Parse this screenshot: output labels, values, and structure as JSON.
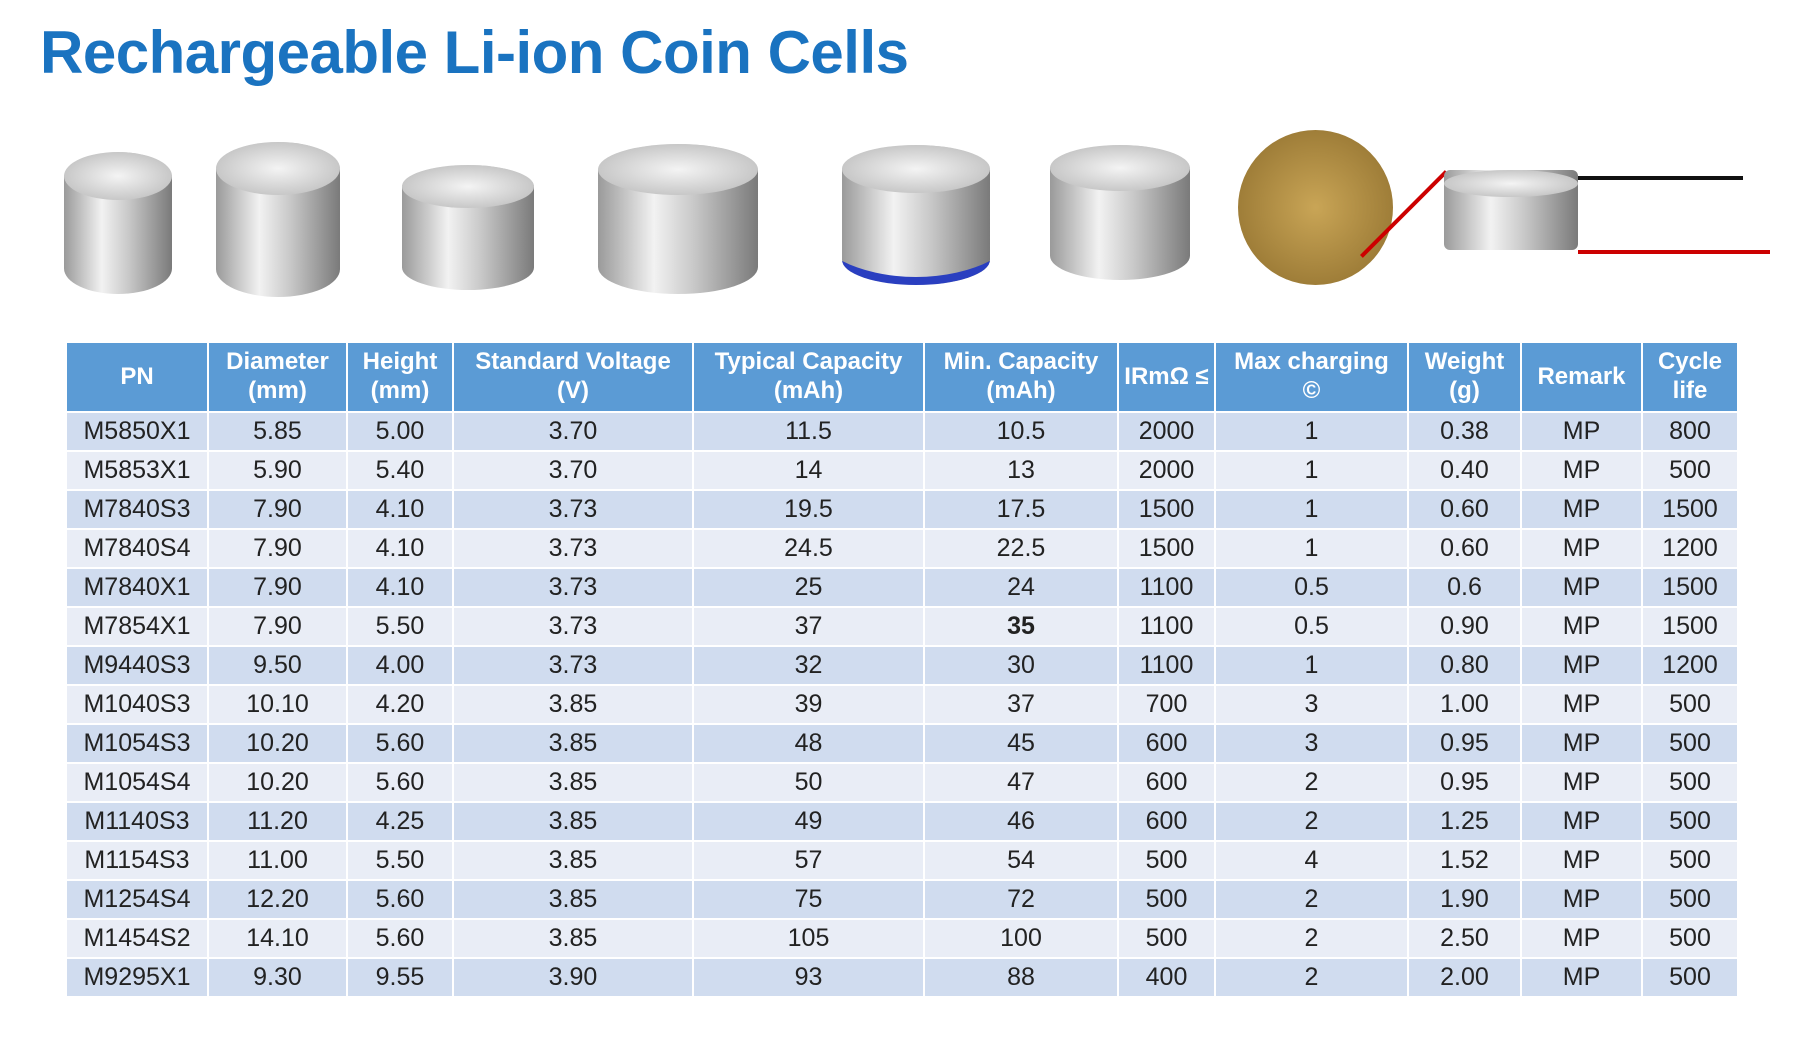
{
  "title": "Rechargeable Li-ion Coin Cells",
  "headers": [
    [
      "PN",
      ""
    ],
    [
      "Diameter",
      "(mm)"
    ],
    [
      "Height",
      "(mm)"
    ],
    [
      "Standard Voltage",
      "(V)"
    ],
    [
      "Typical Capacity",
      "(mAh)"
    ],
    [
      "Min. Capacity",
      "(mAh)"
    ],
    [
      "IRmΩ ≤",
      ""
    ],
    [
      "Max charging",
      "©"
    ],
    [
      "Weight",
      "(g)"
    ],
    [
      "Remark",
      ""
    ],
    [
      "Cycle",
      "life"
    ]
  ],
  "rows": [
    [
      "M5850X1",
      "5.85",
      "5.00",
      "3.70",
      "11.5",
      "10.5",
      "2000",
      "1",
      "0.38",
      "MP",
      "800"
    ],
    [
      "M5853X1",
      "5.90",
      "5.40",
      "3.70",
      "14",
      "13",
      "2000",
      "1",
      "0.40",
      "MP",
      "500"
    ],
    [
      "M7840S3",
      "7.90",
      "4.10",
      "3.73",
      "19.5",
      "17.5",
      "1500",
      "1",
      "0.60",
      "MP",
      "1500"
    ],
    [
      "M7840S4",
      "7.90",
      "4.10",
      "3.73",
      "24.5",
      "22.5",
      "1500",
      "1",
      "0.60",
      "MP",
      "1200"
    ],
    [
      "M7840X1",
      "7.90",
      "4.10",
      "3.73",
      "25",
      "24",
      "1100",
      "0.5",
      "0.6",
      "MP",
      "1500"
    ],
    [
      "M7854X1",
      "7.90",
      "5.50",
      "3.73",
      "37",
      "35",
      "1100",
      "0.5",
      "0.90",
      "MP",
      "1500"
    ],
    [
      "M9440S3",
      "9.50",
      "4.00",
      "3.73",
      "32",
      "30",
      "1100",
      "1",
      "0.80",
      "MP",
      "1200"
    ],
    [
      "M1040S3",
      "10.10",
      "4.20",
      "3.85",
      "39",
      "37",
      "700",
      "3",
      "1.00",
      "MP",
      "500"
    ],
    [
      "M1054S3",
      "10.20",
      "5.60",
      "3.85",
      "48",
      "45",
      "600",
      "3",
      "0.95",
      "MP",
      "500"
    ],
    [
      "M1054S4",
      "10.20",
      "5.60",
      "3.85",
      "50",
      "47",
      "600",
      "2",
      "0.95",
      "MP",
      "500"
    ],
    [
      "M1140S3",
      "11.20",
      "4.25",
      "3.85",
      "49",
      "46",
      "600",
      "2",
      "1.25",
      "MP",
      "500"
    ],
    [
      "M1154S3",
      "11.00",
      "5.50",
      "3.85",
      "57",
      "54",
      "500",
      "4",
      "1.52",
      "MP",
      "500"
    ],
    [
      "M1254S4",
      "12.20",
      "5.60",
      "3.85",
      "75",
      "72",
      "500",
      "2",
      "1.90",
      "MP",
      "500"
    ],
    [
      "M1454S2",
      "14.10",
      "5.60",
      "3.85",
      "105",
      "100",
      "500",
      "2",
      "2.50",
      "MP",
      "500"
    ],
    [
      "M9295X1",
      "9.30",
      "9.55",
      "3.90",
      "93",
      "88",
      "400",
      "2",
      "2.00",
      "MP",
      "500"
    ]
  ]
}
